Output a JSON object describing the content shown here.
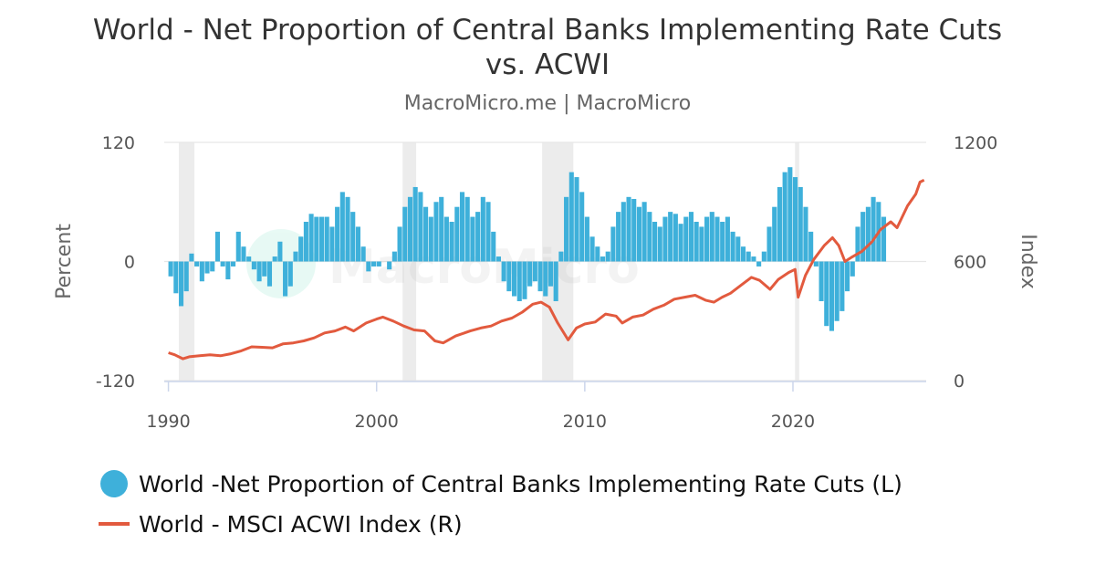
{
  "title": "World - Net Proportion of Central Banks Implementing Rate Cuts vs. ACWI",
  "subtitle": "MacroMicro.me | MacroMicro",
  "watermark": "MacroMicro",
  "colors": {
    "bars": "#3eb0da",
    "line": "#e25a3e",
    "recession": "#ececec",
    "grid": "#e6e6e6"
  },
  "chart_data": {
    "type": "bar+line",
    "y_left": {
      "label": "Percent",
      "ticks": [
        "120",
        "0",
        "-120"
      ],
      "range": [
        -120,
        120
      ]
    },
    "y_right": {
      "label": "Index",
      "ticks": [
        "1200",
        "600",
        "0"
      ],
      "range": [
        0,
        1200
      ]
    },
    "x": {
      "ticks": [
        "1990",
        "2000",
        "2010",
        "2020"
      ],
      "range": [
        1989.8,
        2026.4
      ]
    },
    "recessions": [
      [
        1990.5,
        1991.25
      ],
      [
        2001.25,
        2001.9
      ],
      [
        2007.95,
        2009.45
      ],
      [
        2020.1,
        2020.3
      ]
    ],
    "series": [
      {
        "name": "World -Net Proportion of Central Banks Implementing Rate Cuts (L)",
        "type": "bar",
        "axis": "left",
        "points": [
          [
            1990.0,
            -15
          ],
          [
            1990.25,
            -32
          ],
          [
            1990.5,
            -45
          ],
          [
            1990.75,
            -30
          ],
          [
            1991.0,
            8
          ],
          [
            1991.25,
            -5
          ],
          [
            1991.5,
            -20
          ],
          [
            1991.75,
            -12
          ],
          [
            1992.0,
            -10
          ],
          [
            1992.25,
            30
          ],
          [
            1992.5,
            -5
          ],
          [
            1992.75,
            -18
          ],
          [
            1993.0,
            -5
          ],
          [
            1993.25,
            30
          ],
          [
            1993.5,
            15
          ],
          [
            1993.75,
            5
          ],
          [
            1994.0,
            -8
          ],
          [
            1994.25,
            -20
          ],
          [
            1994.5,
            -15
          ],
          [
            1994.75,
            -25
          ],
          [
            1995.0,
            5
          ],
          [
            1995.25,
            20
          ],
          [
            1995.5,
            -35
          ],
          [
            1995.75,
            -25
          ],
          [
            1996.0,
            10
          ],
          [
            1996.25,
            25
          ],
          [
            1996.5,
            40
          ],
          [
            1996.75,
            48
          ],
          [
            1997.0,
            45
          ],
          [
            1997.25,
            45
          ],
          [
            1997.5,
            45
          ],
          [
            1997.75,
            35
          ],
          [
            1998.0,
            55
          ],
          [
            1998.25,
            70
          ],
          [
            1998.5,
            65
          ],
          [
            1998.75,
            50
          ],
          [
            1999.0,
            35
          ],
          [
            1999.25,
            15
          ],
          [
            1999.5,
            -10
          ],
          [
            1999.75,
            -5
          ],
          [
            2000.0,
            -5
          ],
          [
            2000.25,
            0
          ],
          [
            2000.5,
            -8
          ],
          [
            2000.75,
            10
          ],
          [
            2001.0,
            35
          ],
          [
            2001.25,
            55
          ],
          [
            2001.5,
            65
          ],
          [
            2001.75,
            75
          ],
          [
            2002.0,
            70
          ],
          [
            2002.25,
            55
          ],
          [
            2002.5,
            45
          ],
          [
            2002.75,
            60
          ],
          [
            2003.0,
            65
          ],
          [
            2003.25,
            45
          ],
          [
            2003.5,
            40
          ],
          [
            2003.75,
            55
          ],
          [
            2004.0,
            70
          ],
          [
            2004.25,
            65
          ],
          [
            2004.5,
            45
          ],
          [
            2004.75,
            50
          ],
          [
            2005.0,
            65
          ],
          [
            2005.25,
            60
          ],
          [
            2005.5,
            30
          ],
          [
            2005.75,
            5
          ],
          [
            2006.0,
            -20
          ],
          [
            2006.25,
            -30
          ],
          [
            2006.5,
            -35
          ],
          [
            2006.75,
            -40
          ],
          [
            2007.0,
            -38
          ],
          [
            2007.25,
            -25
          ],
          [
            2007.5,
            -20
          ],
          [
            2007.75,
            -30
          ],
          [
            2008.0,
            -35
          ],
          [
            2008.25,
            -25
          ],
          [
            2008.5,
            -40
          ],
          [
            2008.75,
            10
          ],
          [
            2009.0,
            65
          ],
          [
            2009.25,
            90
          ],
          [
            2009.5,
            85
          ],
          [
            2009.75,
            70
          ],
          [
            2010.0,
            45
          ],
          [
            2010.25,
            25
          ],
          [
            2010.5,
            15
          ],
          [
            2010.75,
            5
          ],
          [
            2011.0,
            10
          ],
          [
            2011.25,
            35
          ],
          [
            2011.5,
            50
          ],
          [
            2011.75,
            60
          ],
          [
            2012.0,
            65
          ],
          [
            2012.25,
            63
          ],
          [
            2012.5,
            55
          ],
          [
            2012.75,
            60
          ],
          [
            2013.0,
            50
          ],
          [
            2013.25,
            40
          ],
          [
            2013.5,
            35
          ],
          [
            2013.75,
            45
          ],
          [
            2014.0,
            50
          ],
          [
            2014.25,
            48
          ],
          [
            2014.5,
            38
          ],
          [
            2014.75,
            45
          ],
          [
            2015.0,
            50
          ],
          [
            2015.25,
            40
          ],
          [
            2015.5,
            35
          ],
          [
            2015.75,
            45
          ],
          [
            2016.0,
            50
          ],
          [
            2016.25,
            45
          ],
          [
            2016.5,
            40
          ],
          [
            2016.75,
            45
          ],
          [
            2017.0,
            30
          ],
          [
            2017.25,
            25
          ],
          [
            2017.5,
            15
          ],
          [
            2017.75,
            10
          ],
          [
            2018.0,
            5
          ],
          [
            2018.25,
            -5
          ],
          [
            2018.5,
            10
          ],
          [
            2018.75,
            35
          ],
          [
            2019.0,
            55
          ],
          [
            2019.25,
            75
          ],
          [
            2019.5,
            90
          ],
          [
            2019.75,
            95
          ],
          [
            2020.0,
            85
          ],
          [
            2020.25,
            75
          ],
          [
            2020.5,
            55
          ],
          [
            2020.75,
            30
          ],
          [
            2021.0,
            -5
          ],
          [
            2021.25,
            -40
          ],
          [
            2021.5,
            -65
          ],
          [
            2021.75,
            -70
          ],
          [
            2022.0,
            -60
          ],
          [
            2022.25,
            -50
          ],
          [
            2022.5,
            -30
          ],
          [
            2022.75,
            -15
          ],
          [
            2023.0,
            35
          ],
          [
            2023.25,
            50
          ],
          [
            2023.5,
            55
          ],
          [
            2023.75,
            65
          ],
          [
            2024.0,
            60
          ],
          [
            2024.25,
            45
          ]
        ]
      },
      {
        "name": "World - MSCI ACWI Index (R)",
        "type": "line",
        "axis": "right",
        "points": [
          [
            1990.0,
            140
          ],
          [
            1990.3,
            130
          ],
          [
            1990.7,
            110
          ],
          [
            1991.0,
            120
          ],
          [
            1991.5,
            125
          ],
          [
            1992.0,
            130
          ],
          [
            1992.5,
            125
          ],
          [
            1993.0,
            135
          ],
          [
            1993.5,
            150
          ],
          [
            1994.0,
            170
          ],
          [
            1994.5,
            168
          ],
          [
            1995.0,
            165
          ],
          [
            1995.5,
            185
          ],
          [
            1996.0,
            190
          ],
          [
            1996.5,
            200
          ],
          [
            1997.0,
            215
          ],
          [
            1997.5,
            240
          ],
          [
            1998.0,
            250
          ],
          [
            1998.5,
            270
          ],
          [
            1998.9,
            250
          ],
          [
            1999.5,
            290
          ],
          [
            2000.0,
            310
          ],
          [
            2000.3,
            320
          ],
          [
            2000.8,
            300
          ],
          [
            2001.3,
            275
          ],
          [
            2001.8,
            255
          ],
          [
            2002.3,
            250
          ],
          [
            2002.8,
            200
          ],
          [
            2003.2,
            190
          ],
          [
            2003.8,
            225
          ],
          [
            2004.5,
            250
          ],
          [
            2005.0,
            265
          ],
          [
            2005.5,
            275
          ],
          [
            2006.0,
            300
          ],
          [
            2006.5,
            315
          ],
          [
            2007.0,
            345
          ],
          [
            2007.5,
            385
          ],
          [
            2007.9,
            395
          ],
          [
            2008.3,
            370
          ],
          [
            2008.7,
            290
          ],
          [
            2009.2,
            205
          ],
          [
            2009.6,
            265
          ],
          [
            2010.0,
            285
          ],
          [
            2010.5,
            295
          ],
          [
            2011.0,
            335
          ],
          [
            2011.5,
            325
          ],
          [
            2011.8,
            290
          ],
          [
            2012.3,
            320
          ],
          [
            2012.8,
            330
          ],
          [
            2013.3,
            360
          ],
          [
            2013.8,
            380
          ],
          [
            2014.3,
            410
          ],
          [
            2014.8,
            420
          ],
          [
            2015.3,
            430
          ],
          [
            2015.8,
            405
          ],
          [
            2016.2,
            395
          ],
          [
            2016.6,
            420
          ],
          [
            2017.0,
            440
          ],
          [
            2017.5,
            480
          ],
          [
            2018.0,
            520
          ],
          [
            2018.4,
            505
          ],
          [
            2018.9,
            460
          ],
          [
            2019.3,
            510
          ],
          [
            2019.8,
            545
          ],
          [
            2020.1,
            560
          ],
          [
            2020.25,
            420
          ],
          [
            2020.6,
            530
          ],
          [
            2021.0,
            610
          ],
          [
            2021.5,
            680
          ],
          [
            2021.9,
            720
          ],
          [
            2022.2,
            680
          ],
          [
            2022.5,
            600
          ],
          [
            2022.8,
            620
          ],
          [
            2023.3,
            650
          ],
          [
            2023.8,
            700
          ],
          [
            2024.2,
            760
          ],
          [
            2024.7,
            800
          ],
          [
            2025.0,
            770
          ],
          [
            2025.5,
            880
          ],
          [
            2025.9,
            940
          ],
          [
            2026.1,
            1000
          ],
          [
            2026.3,
            1010
          ]
        ]
      }
    ],
    "legend": "bottom-left"
  }
}
